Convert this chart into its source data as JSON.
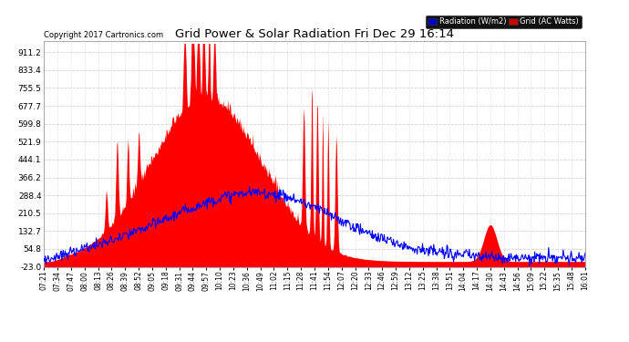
{
  "title": "Grid Power & Solar Radiation Fri Dec 29 16:14",
  "copyright": "Copyright 2017 Cartronics.com",
  "legend_radiation": "Radiation (W/m2)",
  "legend_grid": "Grid (AC Watts)",
  "yticks": [
    -23.0,
    54.8,
    132.7,
    210.5,
    288.4,
    366.2,
    444.1,
    521.9,
    599.8,
    677.7,
    755.5,
    833.4,
    911.2
  ],
  "ymin": -23.0,
  "ymax": 960.0,
  "bg_color": "#ffffff",
  "plot_bg_color": "#ffffff",
  "grid_color": "#cccccc",
  "fill_color": "#ff0000",
  "line_color": "#0000ff",
  "xtick_labels": [
    "07:21",
    "07:34",
    "07:47",
    "08:00",
    "08:13",
    "08:26",
    "08:39",
    "08:52",
    "09:05",
    "09:18",
    "09:31",
    "09:44",
    "09:57",
    "10:10",
    "10:23",
    "10:36",
    "10:49",
    "11:02",
    "11:15",
    "11:28",
    "11:41",
    "11:54",
    "12:07",
    "12:20",
    "12:33",
    "12:46",
    "12:59",
    "13:12",
    "13:25",
    "13:38",
    "13:51",
    "14:04",
    "14:17",
    "14:30",
    "14:43",
    "14:56",
    "15:09",
    "15:22",
    "15:35",
    "15:48",
    "16:01"
  ]
}
